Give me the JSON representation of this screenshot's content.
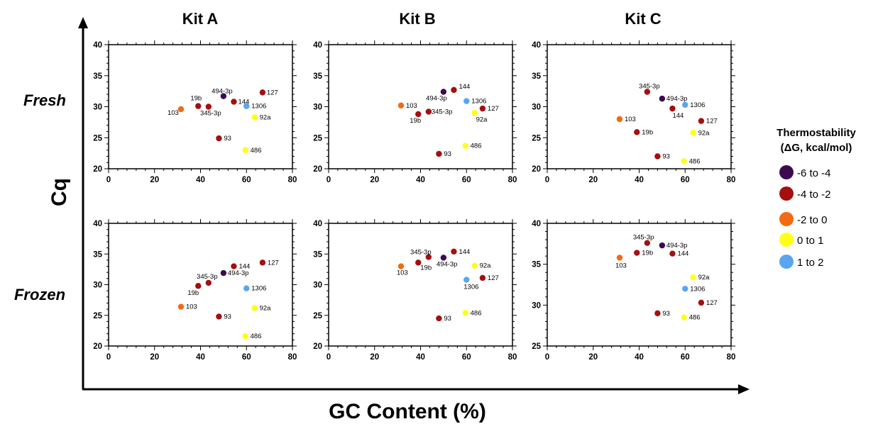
{
  "figure": {
    "column_titles": [
      "Kit A",
      "Kit B",
      "Kit C"
    ],
    "row_titles": [
      "Fresh",
      "Frozen"
    ],
    "ylabel": "Cq",
    "xlabel": "GC Content (%)"
  },
  "legend": {
    "title_line1": "Thermostability",
    "title_line2": "(ΔG, kcal/mol)",
    "items": [
      {
        "label": "-6 to -4",
        "color": "#3d0a4f"
      },
      {
        "label": "-4 to -2",
        "color": "#a3100f"
      },
      {
        "label": "-2 to 0",
        "color": "#f36a14"
      },
      {
        "label": "0 to 1",
        "color": "#ffff1a"
      },
      {
        "label": "1 to 2",
        "color": "#5aa5f0"
      }
    ]
  },
  "chart_data": [
    {
      "type": "scatter",
      "kit": "Kit A",
      "condition": "Fresh",
      "xlim": [
        0,
        80
      ],
      "ylim": [
        20,
        40
      ],
      "xticks": [
        "0",
        "20",
        "40",
        "60",
        "80"
      ],
      "yticks": [
        "20",
        "25",
        "30",
        "35",
        "40"
      ],
      "points": [
        {
          "label": "494-3p",
          "x": 50,
          "y": 31.7,
          "group": "-6 to -4"
        },
        {
          "label": "127",
          "x": 67,
          "y": 32.3,
          "group": "-4 to -2"
        },
        {
          "label": "19b",
          "x": 39,
          "y": 30.1,
          "group": "-4 to -2"
        },
        {
          "label": "144",
          "x": 54.5,
          "y": 30.8,
          "group": "-4 to -2"
        },
        {
          "label": "345-3p",
          "x": 43.5,
          "y": 30.0,
          "group": "-4 to -2"
        },
        {
          "label": "103",
          "x": 31.5,
          "y": 29.6,
          "group": "-2 to 0"
        },
        {
          "label": "1306",
          "x": 60,
          "y": 30.1,
          "group": "1 to 2"
        },
        {
          "label": "92a",
          "x": 63.5,
          "y": 28.3,
          "group": "0 to 1"
        },
        {
          "label": "93",
          "x": 48,
          "y": 24.9,
          "group": "-4 to -2"
        },
        {
          "label": "486",
          "x": 59.5,
          "y": 23.0,
          "group": "0 to 1"
        }
      ]
    },
    {
      "type": "scatter",
      "kit": "Kit B",
      "condition": "Fresh",
      "xlim": [
        0,
        80
      ],
      "ylim": [
        20,
        40
      ],
      "xticks": [
        "0",
        "20",
        "40",
        "60",
        "80"
      ],
      "yticks": [
        "20",
        "25",
        "30",
        "35",
        "40"
      ],
      "points": [
        {
          "label": "144",
          "x": 54.5,
          "y": 32.7,
          "group": "-4 to -2"
        },
        {
          "label": "494-3p",
          "x": 50,
          "y": 32.4,
          "group": "-6 to -4"
        },
        {
          "label": "103",
          "x": 31.5,
          "y": 30.2,
          "group": "-2 to 0"
        },
        {
          "label": "1306",
          "x": 60,
          "y": 30.9,
          "group": "1 to 2"
        },
        {
          "label": "127",
          "x": 67,
          "y": 29.7,
          "group": "-4 to -2"
        },
        {
          "label": "345-3p",
          "x": 43.5,
          "y": 29.2,
          "group": "-4 to -2"
        },
        {
          "label": "19b",
          "x": 39,
          "y": 28.8,
          "group": "-4 to -2"
        },
        {
          "label": "92a",
          "x": 63.5,
          "y": 29.0,
          "group": "0 to 1"
        },
        {
          "label": "486",
          "x": 59.5,
          "y": 23.7,
          "group": "0 to 1"
        },
        {
          "label": "93",
          "x": 48,
          "y": 22.4,
          "group": "-4 to -2"
        }
      ]
    },
    {
      "type": "scatter",
      "kit": "Kit C",
      "condition": "Fresh",
      "xlim": [
        0,
        80
      ],
      "ylim": [
        20,
        40
      ],
      "xticks": [
        "0",
        "20",
        "40",
        "60",
        "80"
      ],
      "yticks": [
        "20",
        "25",
        "30",
        "35",
        "40"
      ],
      "points": [
        {
          "label": "345-3p",
          "x": 43.5,
          "y": 32.4,
          "group": "-4 to -2"
        },
        {
          "label": "494-3p",
          "x": 50,
          "y": 31.3,
          "group": "-6 to -4"
        },
        {
          "label": "1306",
          "x": 60,
          "y": 30.3,
          "group": "1 to 2"
        },
        {
          "label": "144",
          "x": 54.5,
          "y": 29.7,
          "group": "-4 to -2"
        },
        {
          "label": "103",
          "x": 31.5,
          "y": 28.0,
          "group": "-2 to 0"
        },
        {
          "label": "127",
          "x": 67,
          "y": 27.7,
          "group": "-4 to -2"
        },
        {
          "label": "19b",
          "x": 39,
          "y": 25.9,
          "group": "-4 to -2"
        },
        {
          "label": "92a",
          "x": 63.5,
          "y": 25.8,
          "group": "0 to 1"
        },
        {
          "label": "93",
          "x": 48,
          "y": 22.0,
          "group": "-4 to -2"
        },
        {
          "label": "486",
          "x": 59.5,
          "y": 21.2,
          "group": "0 to 1"
        }
      ]
    },
    {
      "type": "scatter",
      "kit": "Kit A",
      "condition": "Frozen",
      "xlim": [
        0,
        80
      ],
      "ylim": [
        20,
        40
      ],
      "xticks": [
        "0",
        "20",
        "40",
        "60",
        "80"
      ],
      "yticks": [
        "20",
        "25",
        "30",
        "35",
        "40"
      ],
      "points": [
        {
          "label": "127",
          "x": 67,
          "y": 33.6,
          "group": "-4 to -2"
        },
        {
          "label": "144",
          "x": 54.5,
          "y": 33.0,
          "group": "-4 to -2"
        },
        {
          "label": "494-3p",
          "x": 50,
          "y": 31.9,
          "group": "-6 to -4"
        },
        {
          "label": "345-3p",
          "x": 43.5,
          "y": 30.3,
          "group": "-4 to -2"
        },
        {
          "label": "19b",
          "x": 39,
          "y": 29.8,
          "group": "-4 to -2"
        },
        {
          "label": "1306",
          "x": 60,
          "y": 29.4,
          "group": "1 to 2"
        },
        {
          "label": "103",
          "x": 31.5,
          "y": 26.4,
          "group": "-2 to 0"
        },
        {
          "label": "92a",
          "x": 63.5,
          "y": 26.2,
          "group": "0 to 1"
        },
        {
          "label": "93",
          "x": 48,
          "y": 24.8,
          "group": "-4 to -2"
        },
        {
          "label": "486",
          "x": 59.5,
          "y": 21.6,
          "group": "0 to 1"
        }
      ]
    },
    {
      "type": "scatter",
      "kit": "Kit B",
      "condition": "Frozen",
      "xlim": [
        0,
        80
      ],
      "ylim": [
        20,
        40
      ],
      "xticks": [
        "0",
        "20",
        "40",
        "60",
        "80"
      ],
      "yticks": [
        "20",
        "25",
        "30",
        "35",
        "40"
      ],
      "points": [
        {
          "label": "345-3p",
          "x": 43.5,
          "y": 34.5,
          "group": "-4 to -2"
        },
        {
          "label": "144",
          "x": 54.5,
          "y": 35.4,
          "group": "-4 to -2"
        },
        {
          "label": "494-3p",
          "x": 50,
          "y": 34.4,
          "group": "-6 to -4"
        },
        {
          "label": "103",
          "x": 31.5,
          "y": 33.0,
          "group": "-2 to 0"
        },
        {
          "label": "19b",
          "x": 39,
          "y": 33.6,
          "group": "-4 to -2"
        },
        {
          "label": "92a",
          "x": 63.5,
          "y": 33.1,
          "group": "0 to 1"
        },
        {
          "label": "127",
          "x": 67,
          "y": 31.1,
          "group": "-4 to -2"
        },
        {
          "label": "1306",
          "x": 60,
          "y": 30.8,
          "group": "1 to 2"
        },
        {
          "label": "486",
          "x": 59.5,
          "y": 25.4,
          "group": "0 to 1"
        },
        {
          "label": "93",
          "x": 48,
          "y": 24.5,
          "group": "-4 to -2"
        }
      ]
    },
    {
      "type": "scatter",
      "kit": "Kit C",
      "condition": "Frozen",
      "xlim": [
        0,
        80
      ],
      "ylim": [
        25,
        40
      ],
      "xticks": [
        "0",
        "20",
        "40",
        "60",
        "80"
      ],
      "yticks": [
        "25",
        "30",
        "35",
        "40"
      ],
      "points": [
        {
          "label": "345-3p",
          "x": 43.5,
          "y": 37.6,
          "group": "-4 to -2"
        },
        {
          "label": "494-3p",
          "x": 50,
          "y": 37.3,
          "group": "-6 to -4"
        },
        {
          "label": "19b",
          "x": 39,
          "y": 36.4,
          "group": "-4 to -2"
        },
        {
          "label": "144",
          "x": 54.5,
          "y": 36.3,
          "group": "-4 to -2"
        },
        {
          "label": "103",
          "x": 31.5,
          "y": 35.8,
          "group": "-2 to 0"
        },
        {
          "label": "92a",
          "x": 63.5,
          "y": 33.4,
          "group": "0 to 1"
        },
        {
          "label": "1306",
          "x": 60,
          "y": 32.0,
          "group": "1 to 2"
        },
        {
          "label": "127",
          "x": 67,
          "y": 30.3,
          "group": "-4 to -2"
        },
        {
          "label": "93",
          "x": 48,
          "y": 29.0,
          "group": "-4 to -2"
        },
        {
          "label": "486",
          "x": 59.5,
          "y": 28.5,
          "group": "0 to 1"
        }
      ]
    }
  ]
}
